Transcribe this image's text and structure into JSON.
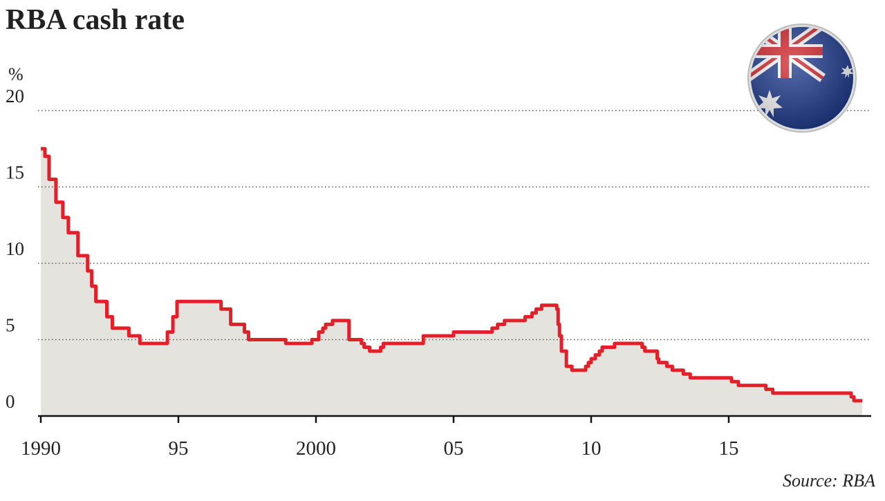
{
  "chart_data": {
    "type": "line",
    "step": "post",
    "title": "RBA cash rate",
    "y_label": "%",
    "source": "Source: RBA",
    "color": "#e3202a",
    "area_color": "#e4e3dd",
    "grid": true,
    "xlim": [
      1990,
      2020
    ],
    "ylim": [
      0,
      20
    ],
    "xticks": [
      1990,
      {
        "value": 1995,
        "label": "95"
      },
      2000,
      {
        "value": 2005,
        "label": "05"
      },
      {
        "value": 2010,
        "label": "10"
      },
      {
        "value": 2015,
        "label": "15"
      }
    ],
    "yticks": [
      0,
      5,
      10,
      15,
      20
    ],
    "x": [
      1990.0,
      1990.15,
      1990.3,
      1990.55,
      1990.8,
      1991.0,
      1991.35,
      1991.7,
      1991.85,
      1992.0,
      1992.4,
      1992.6,
      1993.2,
      1993.6,
      1994.6,
      1994.8,
      1994.95,
      1996.55,
      1996.9,
      1997.4,
      1997.55,
      1998.9,
      1999.85,
      2000.1,
      2000.25,
      2000.35,
      2000.6,
      2001.2,
      2001.65,
      2001.75,
      2001.95,
      2002.35,
      2002.45,
      2003.9,
      2005.0,
      2006.4,
      2006.6,
      2006.85,
      2007.6,
      2007.85,
      2008.0,
      2008.2,
      2008.75,
      2008.8,
      2008.85,
      2008.92,
      2009.1,
      2009.3,
      2009.8,
      2009.9,
      2010.0,
      2010.15,
      2010.3,
      2010.4,
      2010.85,
      2011.85,
      2011.95,
      2012.4,
      2012.45,
      2012.75,
      2012.95,
      2013.35,
      2013.6,
      2015.1,
      2015.35,
      2016.35,
      2016.6,
      2019.45,
      2019.55,
      2019.85
    ],
    "values": [
      17.5,
      17.0,
      15.5,
      14.0,
      13.0,
      12.0,
      10.5,
      9.5,
      8.5,
      7.5,
      6.5,
      5.75,
      5.25,
      4.75,
      5.5,
      6.5,
      7.5,
      7.0,
      6.0,
      5.5,
      5.0,
      4.75,
      5.0,
      5.5,
      5.75,
      6.0,
      6.25,
      5.0,
      4.75,
      4.5,
      4.25,
      4.5,
      4.75,
      5.25,
      5.5,
      5.75,
      6.0,
      6.25,
      6.5,
      6.75,
      7.0,
      7.25,
      7.0,
      6.0,
      5.25,
      4.25,
      3.25,
      3.0,
      3.25,
      3.5,
      3.75,
      4.0,
      4.25,
      4.5,
      4.75,
      4.5,
      4.25,
      3.75,
      3.5,
      3.25,
      3.0,
      2.75,
      2.5,
      2.25,
      2.0,
      1.75,
      1.5,
      1.25,
      1.0,
      1.0
    ]
  }
}
